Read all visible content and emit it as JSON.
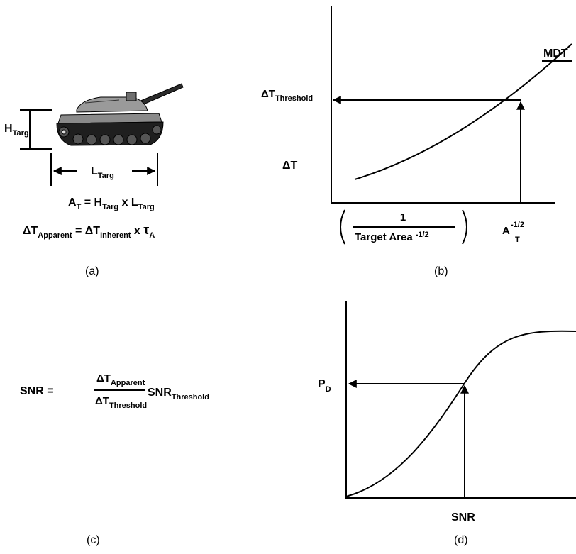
{
  "panel_a": {
    "caption": "(a)",
    "height_main": "H",
    "height_sub": "Targ",
    "length_main": "L",
    "length_sub": "Targ",
    "area_eq": {
      "a": "A",
      "a_sub": "T",
      "eq": " = ",
      "h": "H",
      "h_sub": "Targ",
      "x": " x ",
      "l": "L",
      "l_sub": "Targ"
    },
    "temp_eq": {
      "dt1": "ΔT",
      "dt1_sub": "Apparent",
      "eq": " = ",
      "dt2": "ΔT",
      "dt2_sub": "Inherent",
      "x": " x ",
      "tau": "τ",
      "tau_sub": "A"
    }
  },
  "panel_b": {
    "caption": "(b)",
    "curve_label": "MDT",
    "threshold_main": "ΔT",
    "threshold_sub": "Threshold",
    "y_label": "ΔT",
    "x_label_numerator": "1",
    "x_label_denominator": "Target Area",
    "x_label_exponent": "-1/2",
    "x_marker_main": "A",
    "x_marker_sub": "T",
    "x_marker_sup": "-1/2"
  },
  "panel_c": {
    "caption": "(c)",
    "lhs": "SNR = ",
    "num_main": "ΔT",
    "num_sub": "Apparent",
    "den_main": "ΔT",
    "den_sub": "Threshold",
    "rhs_main": "SNR",
    "rhs_sub": "Threshold"
  },
  "panel_d": {
    "caption": "(d)",
    "y_marker_main": "P",
    "y_marker_sub": "D",
    "x_label": "SNR"
  }
}
